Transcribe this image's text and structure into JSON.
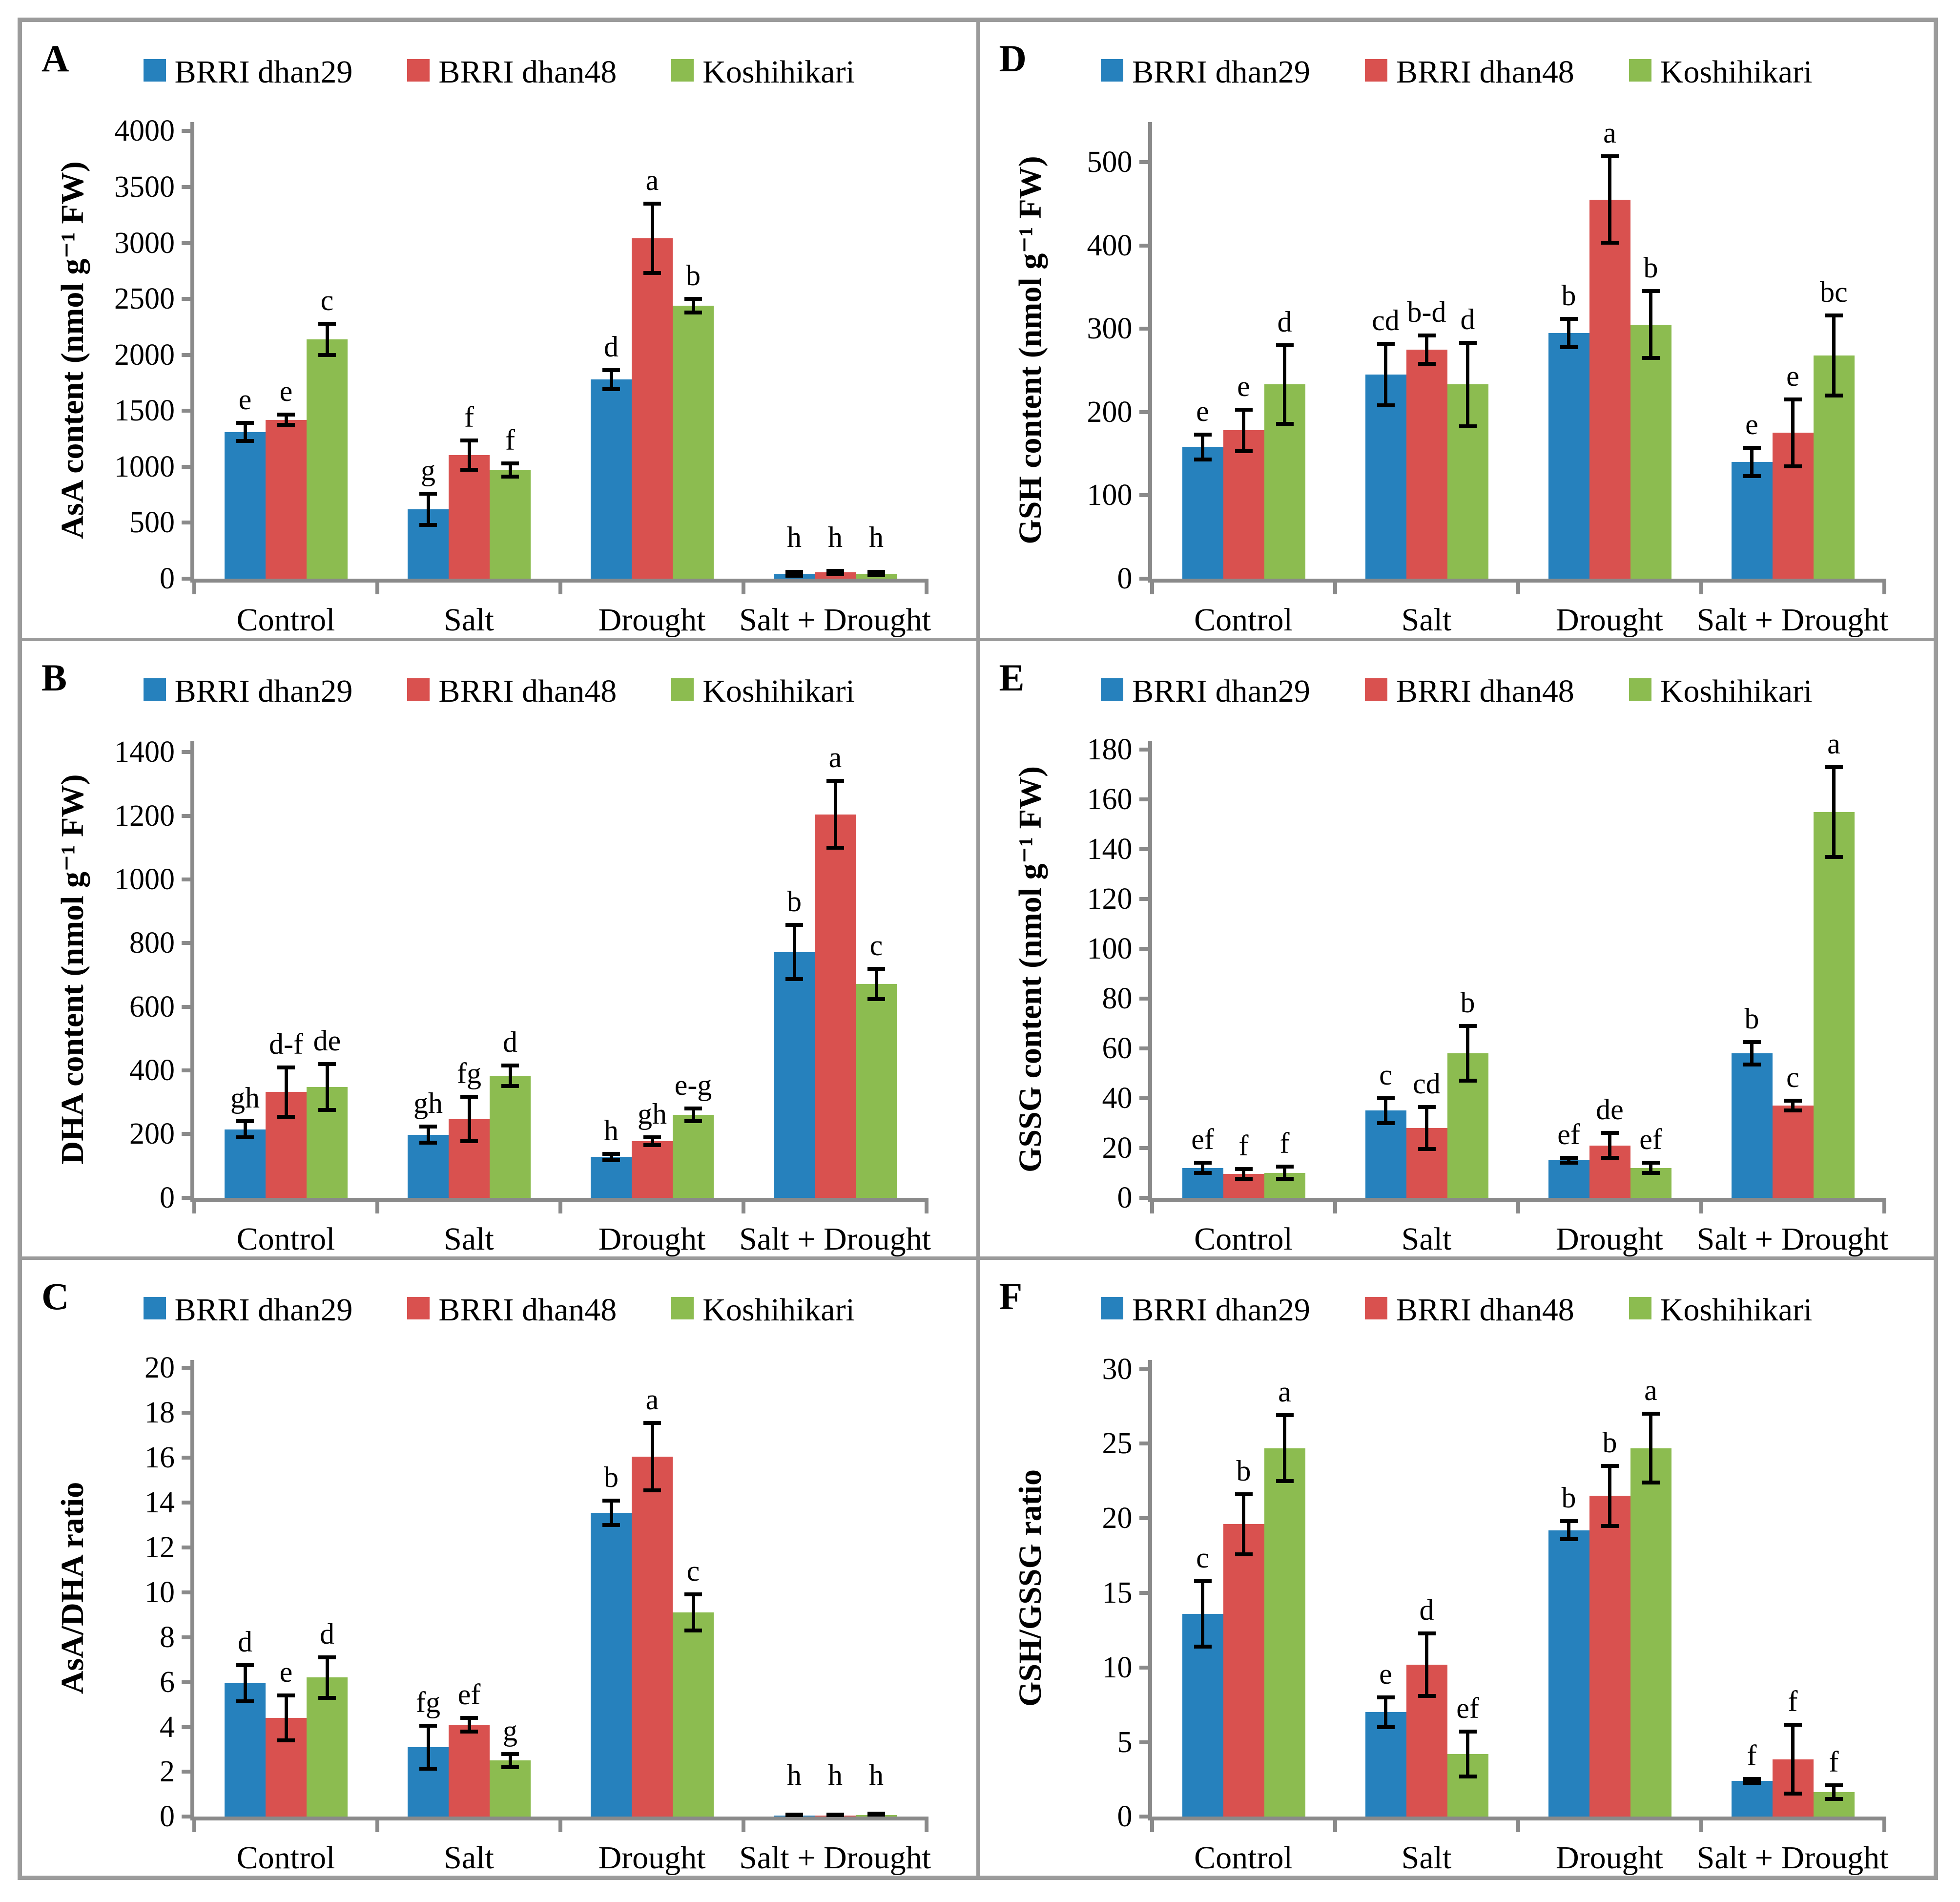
{
  "figure": {
    "frame_color": "#9B9B9B",
    "axis_color": "#8A8A8A",
    "text_color": "#000000",
    "background": "#ffffff"
  },
  "legend": {
    "items": [
      {
        "label": "BRRI dhan29",
        "color": "#2681BD"
      },
      {
        "label": "BRRI dhan48",
        "color": "#D9514F"
      },
      {
        "label": "Koshihikari",
        "color": "#8CBC50"
      }
    ]
  },
  "chart_data": [
    {
      "panel_label": "A",
      "type": "bar",
      "ylabel": "AsA content (nmol g⁻¹ FW)",
      "categories": [
        "Control",
        "Salt",
        "Drought",
        "Salt + Drought"
      ],
      "ylim": [
        0,
        4000
      ],
      "ytick_step": 500,
      "axis_max": 4080,
      "grid": false,
      "legend_position": "top",
      "series": [
        {
          "name": "BRRI dhan29",
          "values": [
            1310,
            620,
            1780,
            45
          ],
          "errors": [
            80,
            140,
            85,
            18
          ],
          "letters": [
            "e",
            "g",
            "d",
            "h"
          ]
        },
        {
          "name": "BRRI dhan48",
          "values": [
            1420,
            1105,
            3040,
            55
          ],
          "errors": [
            45,
            130,
            310,
            15
          ],
          "letters": [
            "e",
            "f",
            "a",
            "h"
          ]
        },
        {
          "name": "Koshihikari",
          "values": [
            2140,
            970,
            2440,
            45
          ],
          "errors": [
            140,
            60,
            60,
            15
          ],
          "letters": [
            "c",
            "f",
            "b",
            "h"
          ]
        }
      ]
    },
    {
      "panel_label": "B",
      "type": "bar",
      "ylabel": "DHA content (nmol g⁻¹ FW)",
      "categories": [
        "Control",
        "Salt",
        "Drought",
        "Salt + Drought"
      ],
      "ylim": [
        0,
        1400
      ],
      "ytick_step": 200,
      "axis_max": 1435,
      "grid": false,
      "legend_position": "top",
      "series": [
        {
          "name": "BRRI dhan29",
          "values": [
            215,
            198,
            128,
            772
          ],
          "errors": [
            25,
            25,
            10,
            85
          ],
          "letters": [
            "gh",
            "gh",
            "h",
            "b"
          ]
        },
        {
          "name": "BRRI dhan48",
          "values": [
            332,
            247,
            178,
            1205
          ],
          "errors": [
            78,
            70,
            12,
            105
          ],
          "letters": [
            "d-f",
            "fg",
            "gh",
            "a"
          ]
        },
        {
          "name": "Koshihikari",
          "values": [
            348,
            383,
            260,
            672
          ],
          "errors": [
            72,
            32,
            20,
            48
          ],
          "letters": [
            "de",
            "d",
            "e-g",
            "c"
          ]
        }
      ]
    },
    {
      "panel_label": "C",
      "type": "bar",
      "ylabel": "AsA/DHA ratio",
      "categories": [
        "Control",
        "Salt",
        "Drought",
        "Salt + Drought"
      ],
      "ylim": [
        0,
        20
      ],
      "ytick_step": 2,
      "axis_max": 20.35,
      "grid": false,
      "legend_position": "top",
      "series": [
        {
          "name": "BRRI dhan29",
          "values": [
            5.95,
            3.1,
            13.55,
            0.05
          ],
          "errors": [
            0.8,
            0.95,
            0.55,
            0.02
          ],
          "letters": [
            "d",
            "fg",
            "b",
            "h"
          ]
        },
        {
          "name": "BRRI dhan48",
          "values": [
            4.4,
            4.1,
            16.05,
            0.05
          ],
          "errors": [
            1.0,
            0.3,
            1.5,
            0.02
          ],
          "letters": [
            "e",
            "ef",
            "a",
            "h"
          ]
        },
        {
          "name": "Koshihikari",
          "values": [
            6.2,
            2.5,
            9.1,
            0.08
          ],
          "errors": [
            0.9,
            0.3,
            0.8,
            0.05
          ],
          "letters": [
            "d",
            "g",
            "c",
            "h"
          ]
        }
      ]
    },
    {
      "panel_label": "D",
      "type": "bar",
      "ylabel": "GSH content (nmol g⁻¹ FW)",
      "categories": [
        "Control",
        "Salt",
        "Drought",
        "Salt + Drought"
      ],
      "ylim": [
        0,
        500
      ],
      "ytick_step": 100,
      "axis_max": 548,
      "grid": false,
      "legend_position": "top",
      "series": [
        {
          "name": "BRRI dhan29",
          "values": [
            158,
            245,
            295,
            140
          ],
          "errors": [
            15,
            37,
            17,
            17
          ],
          "letters": [
            "e",
            "cd",
            "b",
            "e"
          ]
        },
        {
          "name": "BRRI dhan48",
          "values": [
            178,
            275,
            455,
            175
          ],
          "errors": [
            25,
            17,
            52,
            40
          ],
          "letters": [
            "e",
            "b-d",
            "a",
            "e"
          ]
        },
        {
          "name": "Koshihikari",
          "values": [
            233,
            233,
            305,
            268
          ],
          "errors": [
            47,
            50,
            40,
            48
          ],
          "letters": [
            "d",
            "d",
            "b",
            "bc"
          ]
        }
      ]
    },
    {
      "panel_label": "E",
      "type": "bar",
      "ylabel": "GSSG content (nmol g⁻¹ FW)",
      "categories": [
        "Control",
        "Salt",
        "Drought",
        "Salt + Drought"
      ],
      "ylim": [
        0,
        180
      ],
      "ytick_step": 20,
      "axis_max": 183.5,
      "grid": false,
      "legend_position": "top",
      "series": [
        {
          "name": "BRRI dhan29",
          "values": [
            12,
            35,
            15,
            58
          ],
          "errors": [
            2,
            5,
            1,
            4.5
          ],
          "letters": [
            "ef",
            "c",
            "ef",
            "b"
          ]
        },
        {
          "name": "BRRI dhan48",
          "values": [
            9.5,
            28,
            21,
            37
          ],
          "errors": [
            2,
            8.5,
            5,
            2
          ],
          "letters": [
            "f",
            "cd",
            "de",
            "c"
          ]
        },
        {
          "name": "Koshihikari",
          "values": [
            10,
            58,
            12,
            155
          ],
          "errors": [
            2.5,
            11,
            2,
            18
          ],
          "letters": [
            "f",
            "b",
            "ef",
            "a"
          ]
        }
      ]
    },
    {
      "panel_label": "F",
      "type": "bar",
      "ylabel": "GSH/GSSG ratio",
      "categories": [
        "Control",
        "Salt",
        "Drought",
        "Salt + Drought"
      ],
      "ylim": [
        0,
        30
      ],
      "ytick_step": 5,
      "axis_max": 30.6,
      "grid": false,
      "legend_position": "top",
      "series": [
        {
          "name": "BRRI dhan29",
          "values": [
            13.6,
            7.0,
            19.2,
            2.4
          ],
          "errors": [
            2.2,
            1.0,
            0.6,
            0.12
          ],
          "letters": [
            "c",
            "e",
            "b",
            "f"
          ]
        },
        {
          "name": "BRRI dhan48",
          "values": [
            19.6,
            10.2,
            21.5,
            3.85
          ],
          "errors": [
            2.0,
            2.1,
            2.0,
            2.3
          ],
          "letters": [
            "b",
            "d",
            "b",
            "f"
          ]
        },
        {
          "name": "Koshihikari",
          "values": [
            24.7,
            4.2,
            24.7,
            1.65
          ],
          "errors": [
            2.2,
            1.5,
            2.3,
            0.45
          ],
          "letters": [
            "a",
            "ef",
            "a",
            "f"
          ]
        }
      ]
    }
  ]
}
